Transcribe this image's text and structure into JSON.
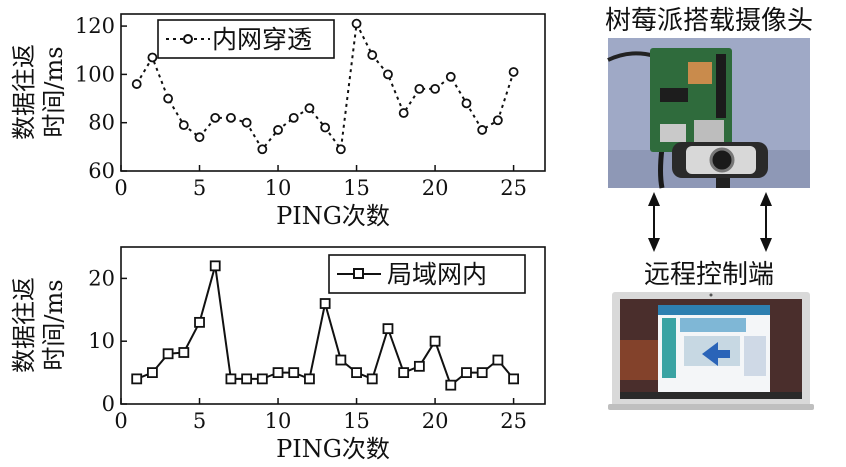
{
  "chart_data": [
    {
      "type": "line",
      "xlabel": "PING次数",
      "ylabel": "数据往返时间/ms",
      "ylabel_lines": [
        "数据往返",
        "时间/ms"
      ],
      "xlim": [
        0,
        27
      ],
      "ylim": [
        60,
        125
      ],
      "xticks": [
        0,
        5,
        10,
        15,
        20,
        25
      ],
      "yticks": [
        60,
        80,
        100,
        120
      ],
      "legend_position": "top-left",
      "series": [
        {
          "name": "内网穿透",
          "line_style": "dotted",
          "marker": "circle",
          "x": [
            1,
            2,
            3,
            4,
            5,
            6,
            7,
            8,
            9,
            10,
            11,
            12,
            13,
            14,
            15,
            16,
            17,
            18,
            19,
            20,
            21,
            22,
            23,
            24,
            25
          ],
          "y": [
            96,
            107,
            90,
            79,
            74,
            82,
            82,
            80,
            69,
            77,
            82,
            86,
            78,
            69,
            121,
            108,
            100,
            84,
            94,
            94,
            99,
            88,
            77,
            81,
            101
          ]
        }
      ]
    },
    {
      "type": "line",
      "xlabel": "PING次数",
      "ylabel": "数据往返时间/ms",
      "ylabel_lines": [
        "数据往返",
        "时间/ms"
      ],
      "xlim": [
        0,
        27
      ],
      "ylim": [
        0,
        25
      ],
      "xticks": [
        0,
        5,
        10,
        15,
        20,
        25
      ],
      "yticks": [
        0,
        10,
        20
      ],
      "legend_position": "top-right",
      "series": [
        {
          "name": "局域网内",
          "line_style": "solid",
          "marker": "square",
          "x": [
            1,
            2,
            3,
            4,
            5,
            6,
            7,
            8,
            9,
            10,
            11,
            12,
            13,
            14,
            15,
            16,
            17,
            18,
            19,
            20,
            21,
            22,
            23,
            24,
            25
          ],
          "y": [
            4,
            5,
            8,
            8.2,
            13,
            22,
            4,
            4,
            4,
            5,
            5,
            4,
            16,
            7,
            5,
            4,
            12,
            5,
            6,
            10,
            3,
            5,
            5,
            7,
            4
          ]
        }
      ]
    }
  ],
  "photos": {
    "top_title": "树莓派搭载摄像头",
    "bottom_title": "远程控制端"
  },
  "colors": {
    "line": "#111111",
    "marker_fill": "#ffffff",
    "photo_bg": "#9aa5c4",
    "board_green": "#2f6b3c",
    "laptop_screen": "#3a2a2a",
    "laptop_frame": "#d8d8d8"
  }
}
